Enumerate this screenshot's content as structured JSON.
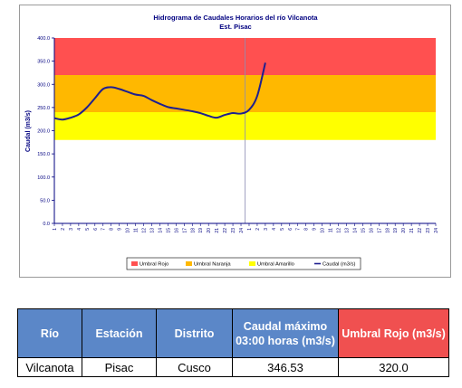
{
  "chart_data": {
    "type": "line",
    "title": "Hidrograma de Caudales Horarios del río Vilcanota",
    "subtitle": "Est. Pisac",
    "ylabel": "Caudal (m3/s)",
    "ylim": [
      0,
      400
    ],
    "yticks": [
      "0.0",
      "50.0",
      "100.0",
      "150.0",
      "200.0",
      "250.0",
      "300.0",
      "350.0",
      "400.0"
    ],
    "xticks": [
      "1",
      "2",
      "3",
      "4",
      "5",
      "6",
      "7",
      "8",
      "9",
      "10",
      "11",
      "12",
      "13",
      "14",
      "15",
      "16",
      "17",
      "18",
      "19",
      "20",
      "21",
      "22",
      "23",
      "24",
      "1",
      "2",
      "3",
      "4",
      "5",
      "6",
      "7",
      "8",
      "9",
      "10",
      "11",
      "12",
      "13",
      "14",
      "15",
      "16",
      "17",
      "18",
      "19",
      "20",
      "21",
      "22",
      "23",
      "24"
    ],
    "bands": [
      {
        "name": "Umbral Rojo",
        "from": 320,
        "to": 400,
        "color": "#ff5050"
      },
      {
        "name": "Umbral Naranja",
        "from": 240,
        "to": 320,
        "color": "#ffb800"
      },
      {
        "name": "Umbral Amarillo",
        "from": 180,
        "to": 240,
        "color": "#ffff00"
      }
    ],
    "series": [
      {
        "name": "Caudal (m3/s)",
        "color": "#1f1f8f",
        "values": [
          227,
          224,
          228,
          235,
          250,
          270,
          290,
          294,
          290,
          284,
          278,
          275,
          266,
          258,
          251,
          248,
          245,
          242,
          238,
          232,
          228,
          234,
          238,
          237,
          245,
          275,
          346.53
        ]
      }
    ],
    "legend": [
      "Umbral Rojo",
      "Umbral Naranja",
      "Umbral Amarillo",
      "Caudal (m3/s)"
    ],
    "legend_position": "bottom"
  },
  "table": {
    "headers": [
      "Río",
      "Estación",
      "Distrito",
      "Caudal máximo 03:00 horas (m3/s)",
      "Umbral Rojo (m3/s)"
    ],
    "row": [
      "Vilcanota",
      "Pisac",
      "Cusco",
      "346.53",
      "320.0"
    ]
  }
}
